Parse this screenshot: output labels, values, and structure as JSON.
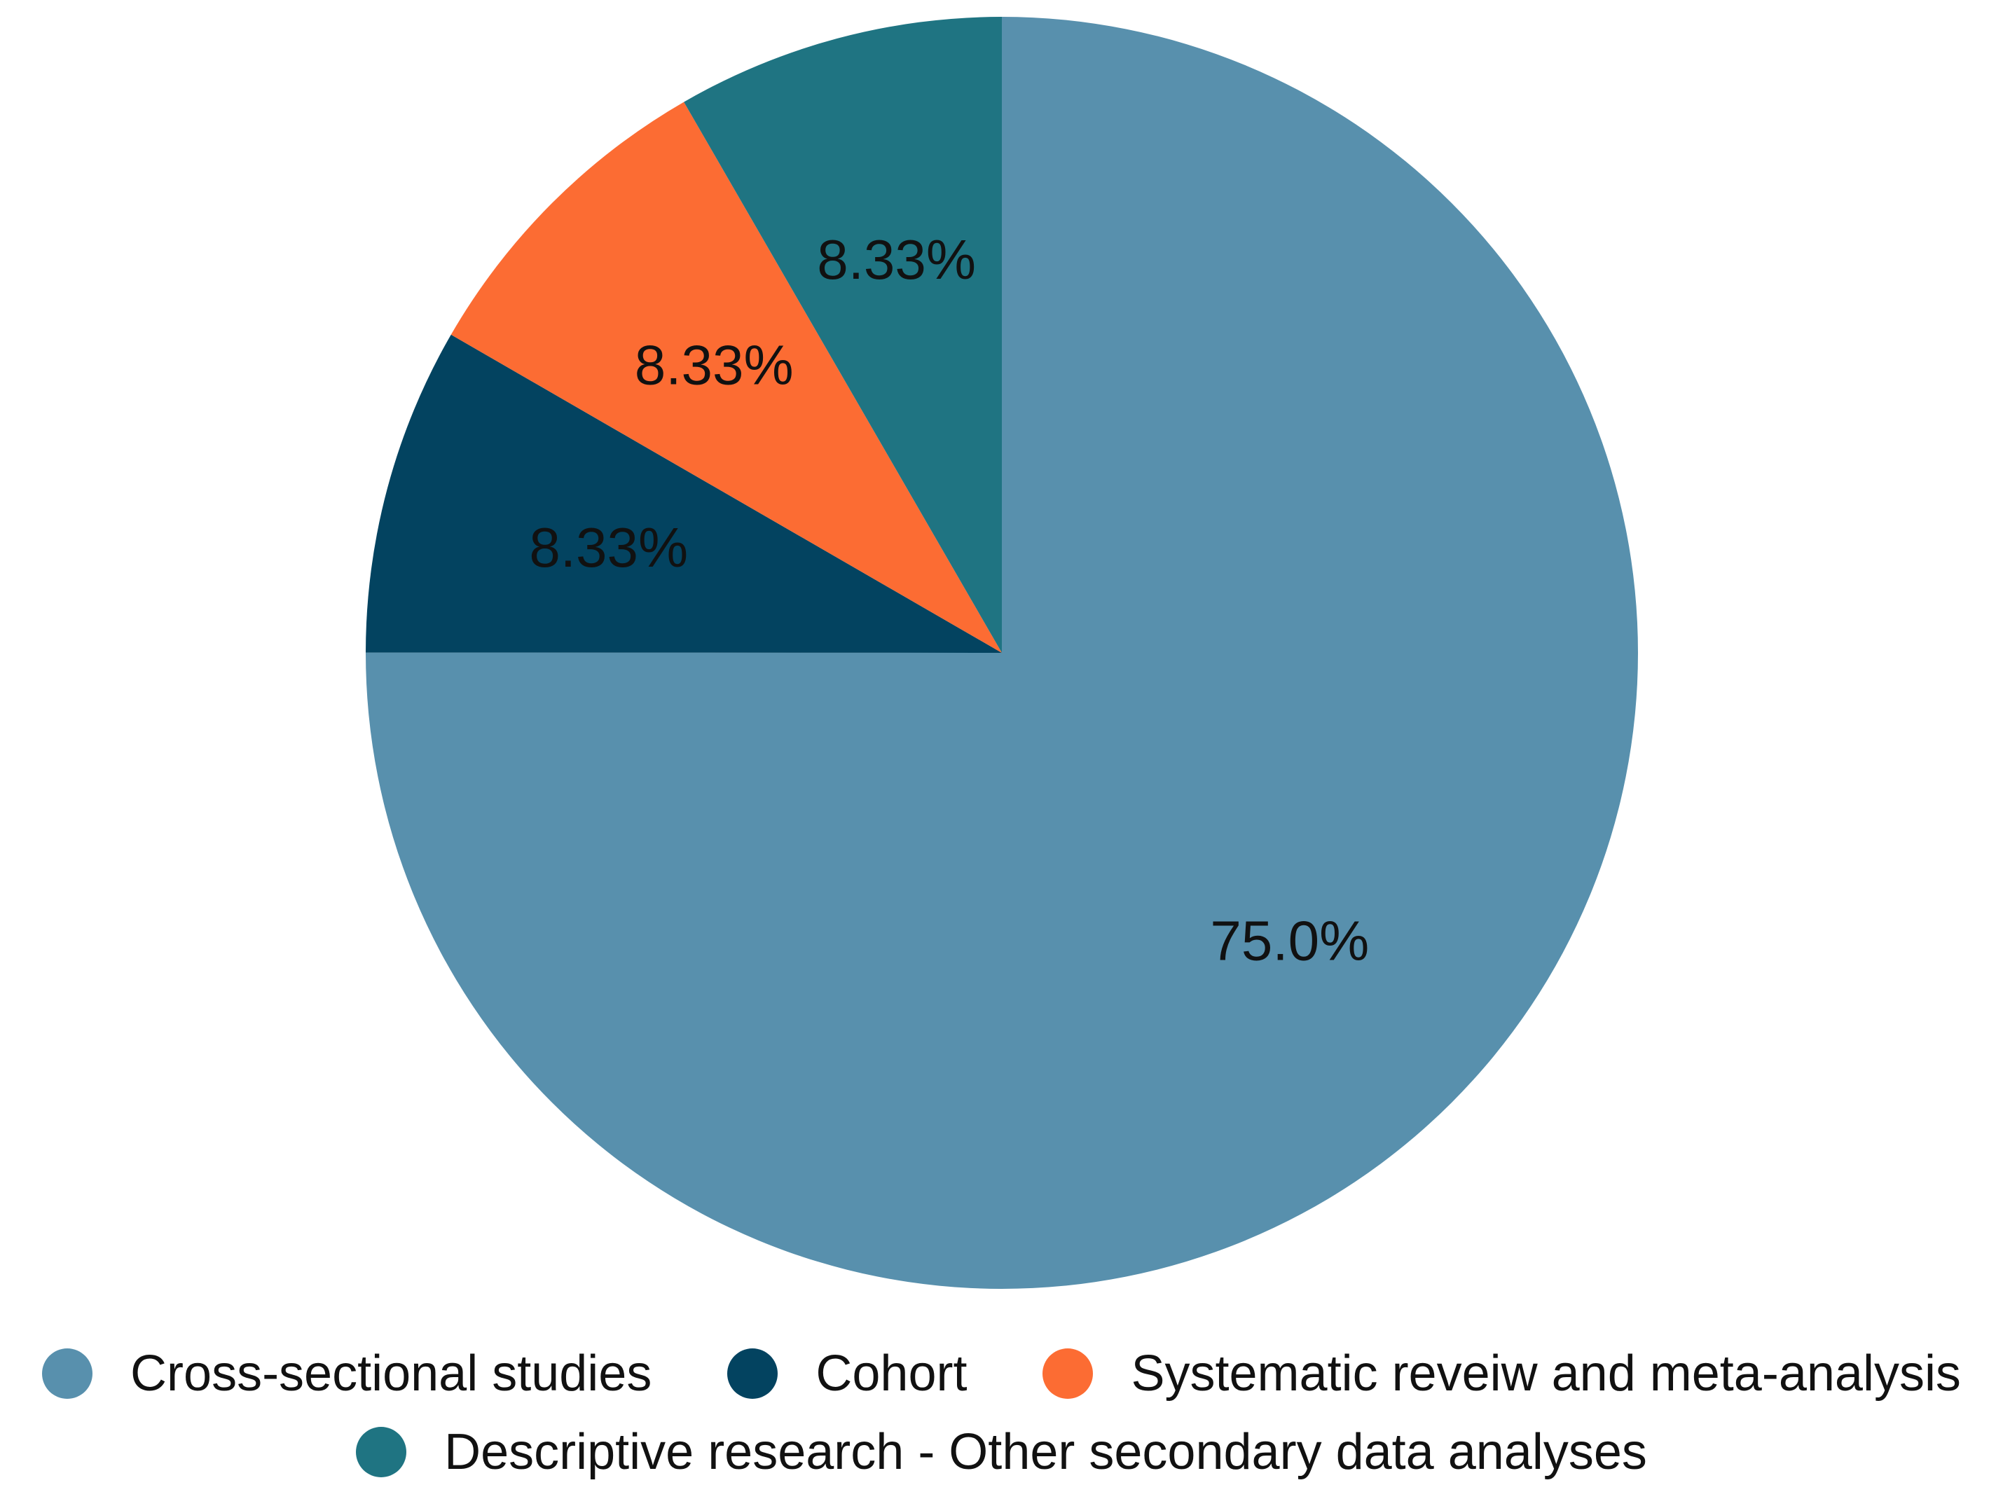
{
  "chart_data": {
    "type": "pie",
    "start_angle": "12 o'clock",
    "direction": "clockwise",
    "slices": [
      {
        "label": "Cross-sectional studies",
        "value": 75.0,
        "value_label": "75.0%",
        "color": "#5890ad"
      },
      {
        "label": "Cohort",
        "value": 8.33,
        "value_label": "8.33%",
        "color": "#034360"
      },
      {
        "label": "Systematic reveiw and meta-analysis",
        "value": 8.33,
        "value_label": "8.33%",
        "color": "#fc6c33"
      },
      {
        "label": "Descriptive research -  Other secondary data analyses",
        "value": 8.33,
        "value_label": "8.33%",
        "color": "#1f7482"
      }
    ],
    "legend": {
      "position": "bottom-center"
    }
  }
}
